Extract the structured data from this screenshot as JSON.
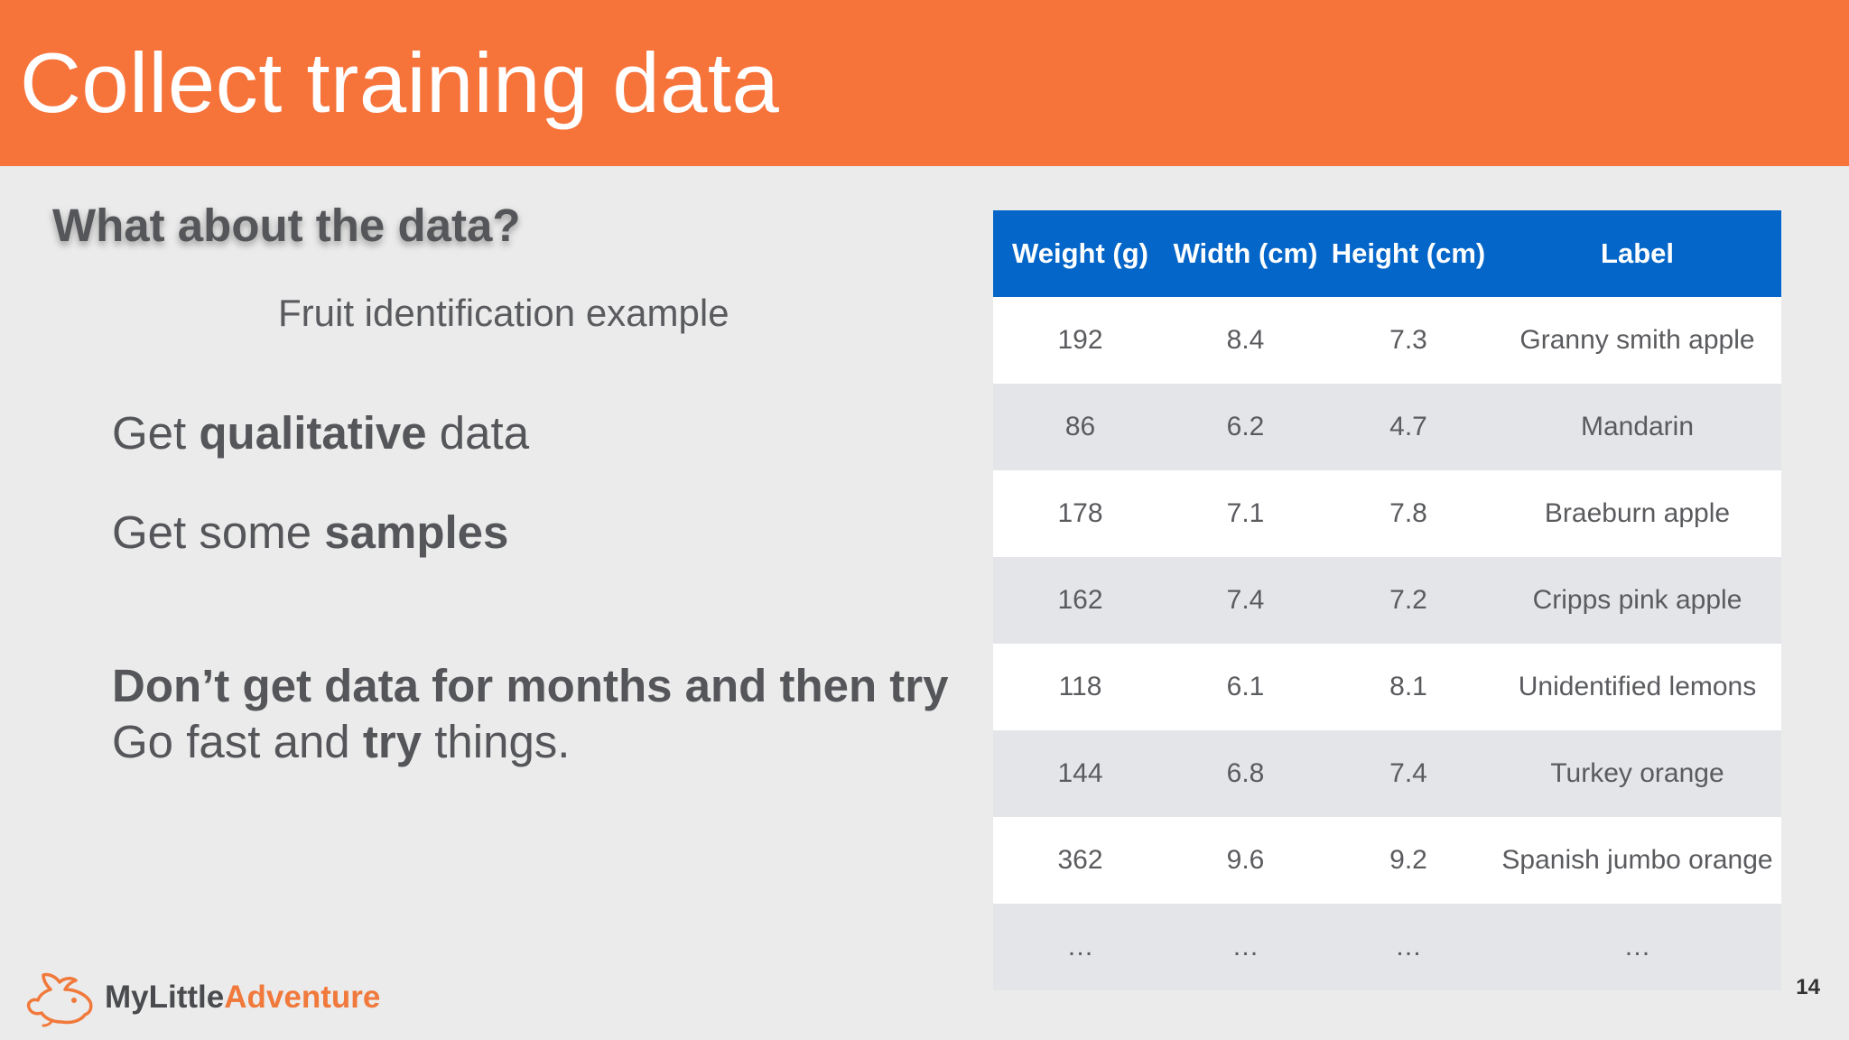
{
  "slide": {
    "title": "Collect training data",
    "page_number": "14"
  },
  "left": {
    "heading": "What about the data?",
    "subtitle": "Fruit identification example",
    "bullet1_pre": "Get ",
    "bullet1_bold": "qualitative",
    "bullet1_post": " data",
    "bullet2_pre": "Get some ",
    "bullet2_bold": "samples",
    "bullet3": "Don’t get data for months and then try",
    "bullet4_pre": "Go fast and ",
    "bullet4_bold": "try",
    "bullet4_post": " things."
  },
  "table": {
    "headers": [
      "Weight (g)",
      "Width (cm)",
      "Height (cm)",
      "Label"
    ],
    "rows": [
      [
        "192",
        "8.4",
        "7.3",
        "Granny smith apple"
      ],
      [
        "86",
        "6.2",
        "4.7",
        "Mandarin"
      ],
      [
        "178",
        "7.1",
        "7.8",
        "Braeburn apple"
      ],
      [
        "162",
        "7.4",
        "7.2",
        "Cripps pink apple"
      ],
      [
        "118",
        "6.1",
        "8.1",
        "Unidentified lemons"
      ],
      [
        "144",
        "6.8",
        "7.4",
        "Turkey orange"
      ],
      [
        "362",
        "9.6",
        "9.2",
        "Spanish jumbo orange"
      ],
      [
        "…",
        "…",
        "…",
        "…"
      ]
    ]
  },
  "logo": {
    "part1": "MyLittle",
    "part2": "Adventure",
    "icon": "rabbit-logo-icon"
  },
  "colors": {
    "header": "#f6733a",
    "table_header": "#0466c8",
    "logo_accent": "#f0793b"
  }
}
